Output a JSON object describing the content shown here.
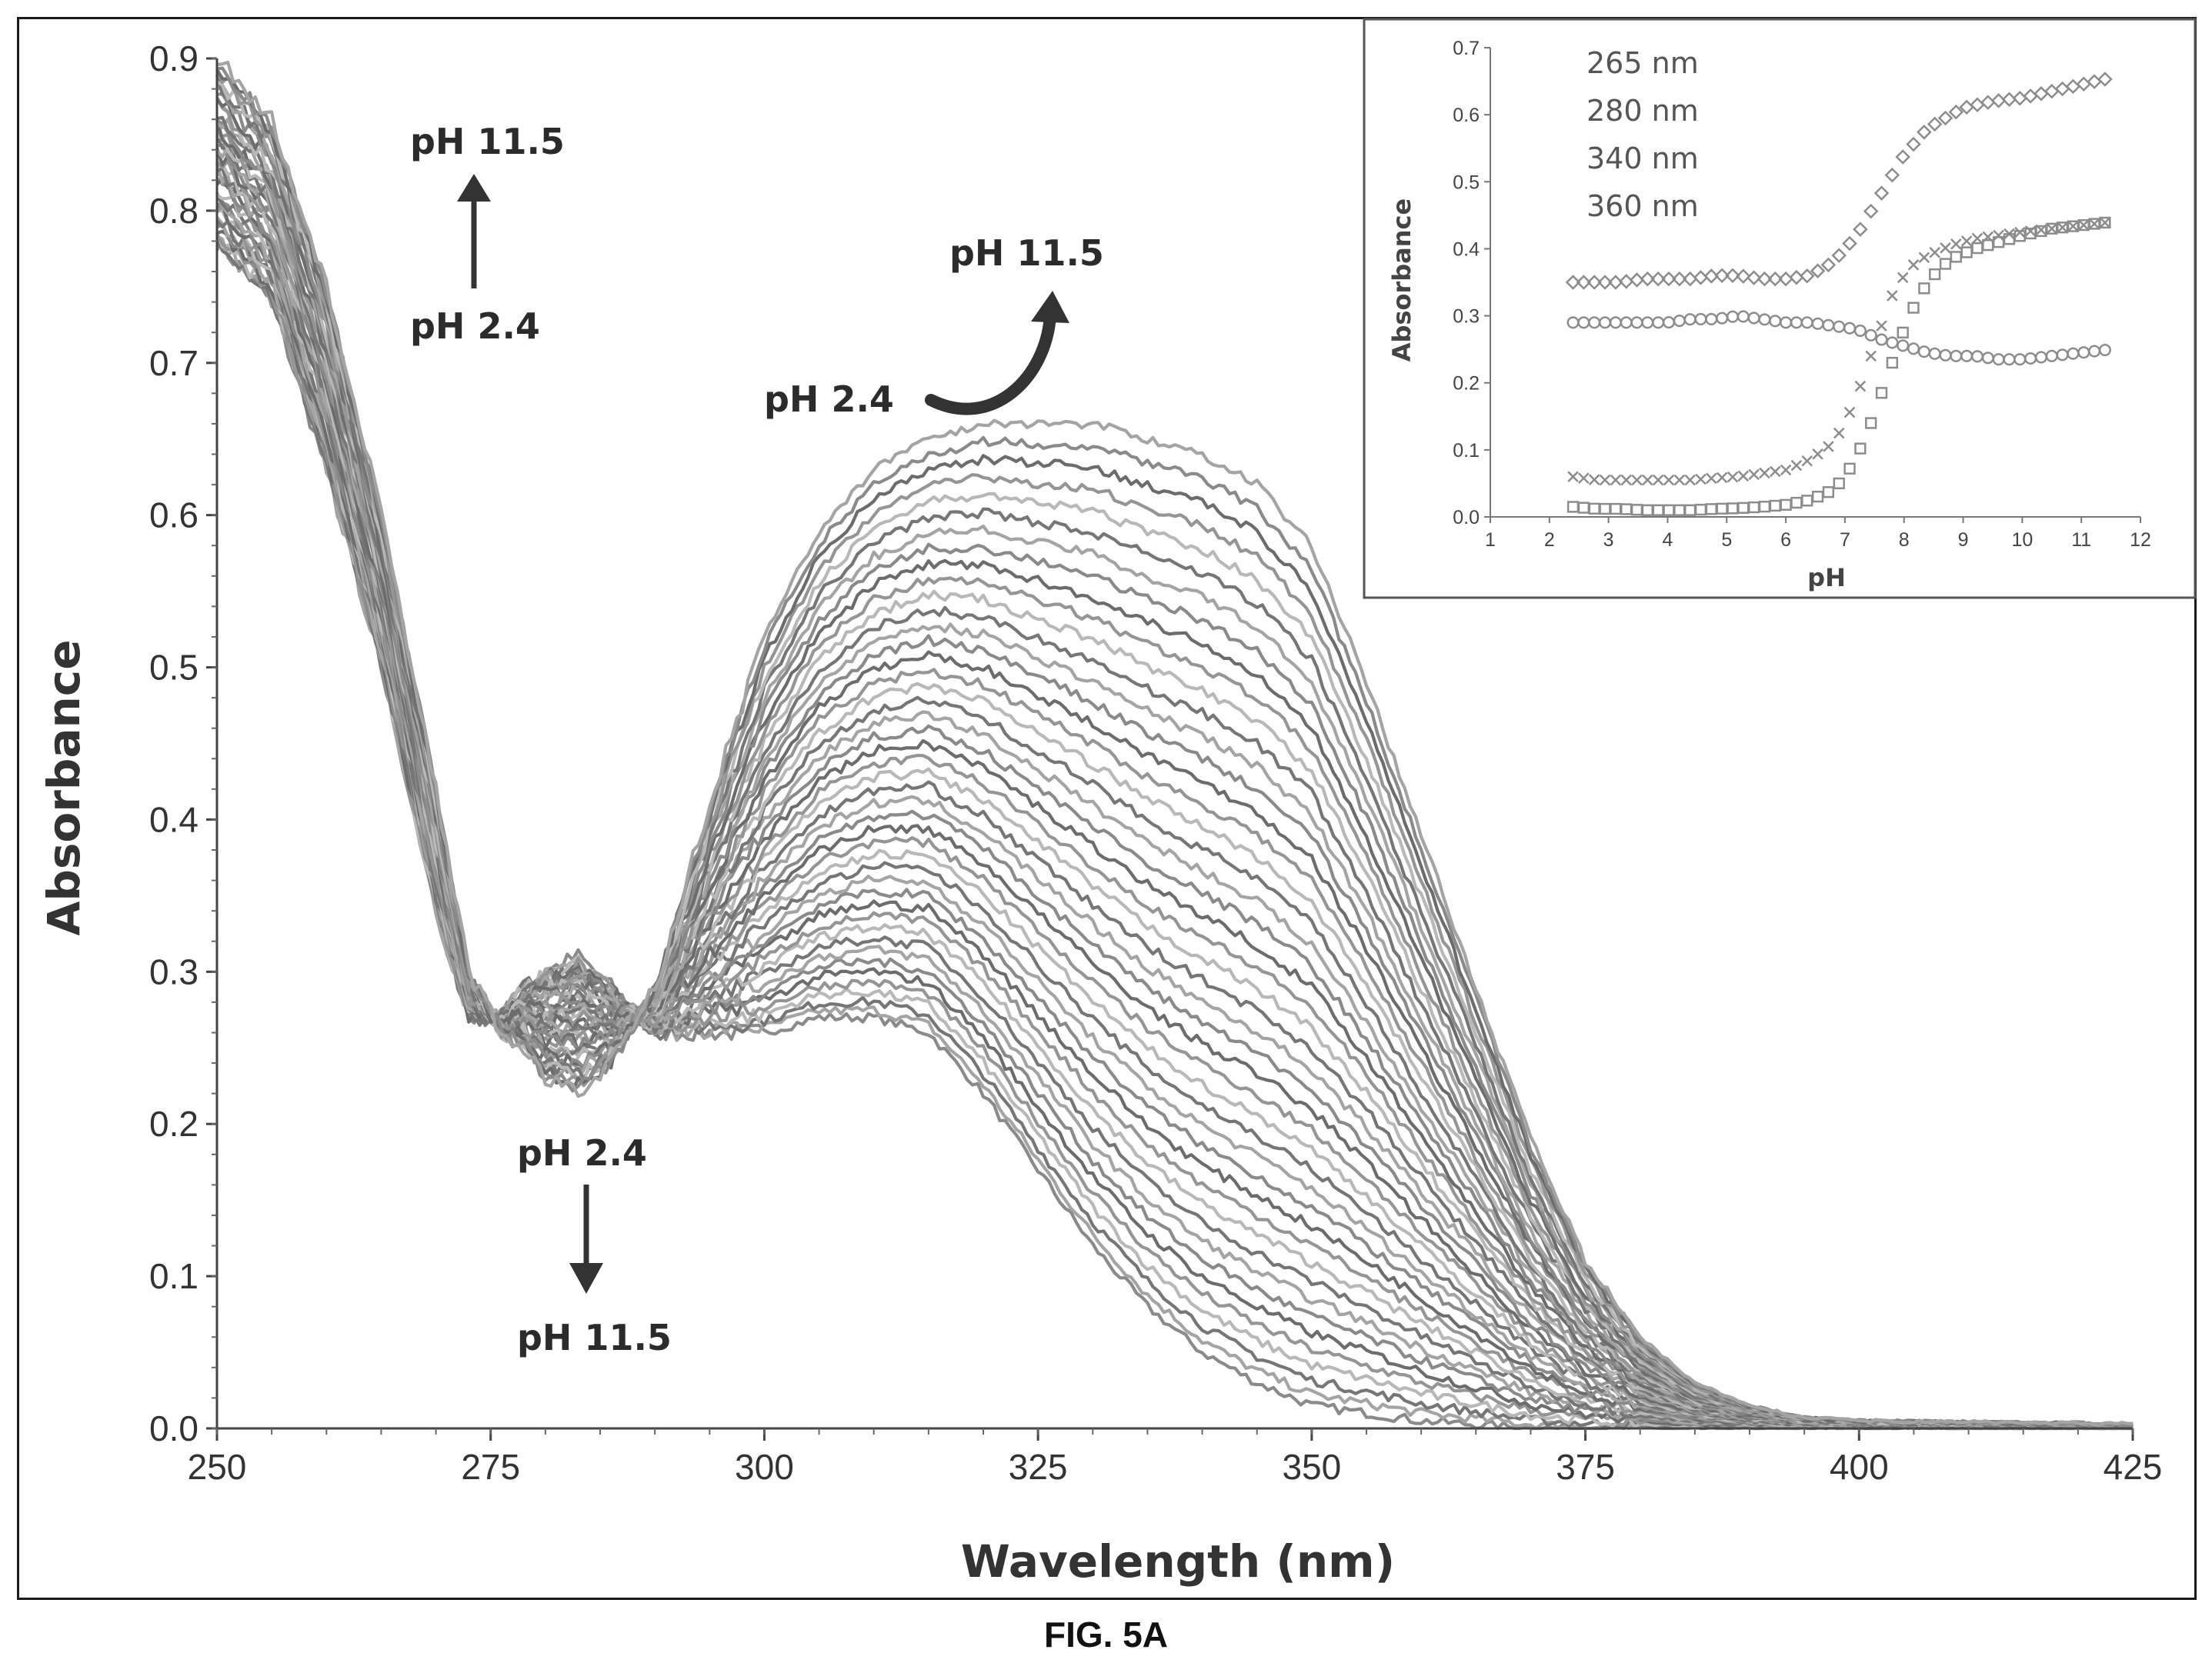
{
  "caption": "FIG. 5A",
  "chart_data": [
    {
      "type": "line",
      "title": "",
      "xlabel": "Wavelength (nm)",
      "ylabel": "Absorbance",
      "xlim": [
        250,
        425
      ],
      "ylim": [
        0.0,
        0.9
      ],
      "xticks": [
        "250",
        "275",
        "300",
        "325",
        "350",
        "375",
        "400",
        "425"
      ],
      "yticks": [
        "0.0",
        "0.1",
        "0.2",
        "0.3",
        "0.4",
        "0.5",
        "0.6",
        "0.7",
        "0.8",
        "0.9"
      ],
      "grid": false,
      "series_count_note": "",
      "lowest_pH_spectrum": {
        "x": [
          250,
          255,
          260,
          265,
          270,
          273,
          276,
          278,
          280,
          283,
          286,
          290,
          295,
          300,
          305,
          310,
          315,
          320,
          325,
          330,
          335,
          340,
          345,
          350,
          360,
          370,
          380,
          390,
          400,
          425
        ],
        "y": [
          0.78,
          0.74,
          0.63,
          0.5,
          0.34,
          0.27,
          0.27,
          0.29,
          0.3,
          0.31,
          0.29,
          0.26,
          0.26,
          0.26,
          0.27,
          0.27,
          0.26,
          0.22,
          0.17,
          0.12,
          0.08,
          0.05,
          0.03,
          0.015,
          0.005,
          0.0,
          0.0,
          0.0,
          0.0,
          0.0
        ]
      },
      "highest_pH_spectrum": {
        "x": [
          250,
          255,
          260,
          265,
          270,
          273,
          276,
          278,
          280,
          283,
          286,
          290,
          295,
          300,
          305,
          310,
          315,
          320,
          325,
          330,
          335,
          340,
          345,
          350,
          355,
          360,
          365,
          370,
          375,
          380,
          385,
          390,
          395,
          400,
          425
        ],
        "y": [
          0.9,
          0.86,
          0.75,
          0.6,
          0.42,
          0.3,
          0.26,
          0.25,
          0.23,
          0.22,
          0.24,
          0.29,
          0.41,
          0.52,
          0.59,
          0.63,
          0.65,
          0.66,
          0.66,
          0.66,
          0.65,
          0.64,
          0.62,
          0.58,
          0.49,
          0.39,
          0.29,
          0.19,
          0.11,
          0.06,
          0.03,
          0.015,
          0.007,
          0.005,
          0.003
        ]
      },
      "annotations": [
        {
          "text_from": "pH 2.4",
          "text_to": "pH 11.5",
          "direction": "up",
          "near_wavelength": 275
        },
        {
          "text_from": "pH 2.4",
          "text_to": "pH 11.5",
          "direction": "curved-up",
          "near_wavelength": 320
        },
        {
          "text_from": "pH 2.4",
          "text_to": "pH 11.5",
          "direction": "down",
          "near_wavelength": 283
        }
      ]
    },
    {
      "type": "scatter",
      "title": "",
      "xlabel": "pH",
      "ylabel": "Absorbance",
      "xlim": [
        1,
        12
      ],
      "ylim": [
        0.0,
        0.7
      ],
      "xticks": [
        "1",
        "2",
        "3",
        "4",
        "5",
        "6",
        "7",
        "8",
        "9",
        "10",
        "11",
        "12"
      ],
      "yticks": [
        "0.0",
        "0.1",
        "0.2",
        "0.3",
        "0.4",
        "0.5",
        "0.6",
        "0.7"
      ],
      "legend_placement": "top-left",
      "series": [
        {
          "name": "265 nm",
          "marker": "diamond",
          "x": [
            2.4,
            2.8,
            3.2,
            3.6,
            4.0,
            4.4,
            4.8,
            5.2,
            5.6,
            6.0,
            6.4,
            6.8,
            7.0,
            7.2,
            7.4,
            7.6,
            7.8,
            8.0,
            8.2,
            8.4,
            8.6,
            8.8,
            9.0,
            9.5,
            10.0,
            10.5,
            11.0,
            11.5
          ],
          "y": [
            0.35,
            0.35,
            0.35,
            0.355,
            0.355,
            0.355,
            0.36,
            0.36,
            0.355,
            0.355,
            0.36,
            0.38,
            0.4,
            0.42,
            0.45,
            0.48,
            0.51,
            0.54,
            0.56,
            0.58,
            0.59,
            0.6,
            0.61,
            0.62,
            0.625,
            0.635,
            0.645,
            0.655
          ]
        },
        {
          "name": "280 nm",
          "marker": "circle",
          "x": [
            2.4,
            2.8,
            3.2,
            3.6,
            4.0,
            4.4,
            4.8,
            5.2,
            5.6,
            6.0,
            6.4,
            6.8,
            7.2,
            7.6,
            8.0,
            8.4,
            8.8,
            9.2,
            9.6,
            10.0,
            10.5,
            11.0,
            11.5
          ],
          "y": [
            0.29,
            0.29,
            0.29,
            0.29,
            0.29,
            0.295,
            0.295,
            0.3,
            0.295,
            0.29,
            0.29,
            0.285,
            0.28,
            0.265,
            0.255,
            0.245,
            0.24,
            0.24,
            0.235,
            0.235,
            0.24,
            0.245,
            0.25
          ]
        },
        {
          "name": "340 nm",
          "marker": "cross",
          "x": [
            2.4,
            2.8,
            3.2,
            3.6,
            4.0,
            4.4,
            4.8,
            5.2,
            5.6,
            6.0,
            6.4,
            6.8,
            7.0,
            7.2,
            7.4,
            7.6,
            7.8,
            8.0,
            8.2,
            8.4,
            8.8,
            9.2,
            9.6,
            10.0,
            10.5,
            11.0,
            11.5
          ],
          "y": [
            0.06,
            0.055,
            0.055,
            0.055,
            0.055,
            0.055,
            0.058,
            0.06,
            0.065,
            0.07,
            0.085,
            0.11,
            0.14,
            0.18,
            0.23,
            0.28,
            0.33,
            0.36,
            0.38,
            0.39,
            0.405,
            0.415,
            0.42,
            0.425,
            0.43,
            0.435,
            0.44
          ]
        },
        {
          "name": "360 nm",
          "marker": "square",
          "x": [
            2.4,
            2.8,
            3.2,
            3.6,
            4.0,
            4.4,
            4.8,
            5.2,
            5.6,
            6.0,
            6.4,
            6.8,
            7.0,
            7.2,
            7.4,
            7.6,
            7.8,
            8.0,
            8.2,
            8.4,
            8.6,
            8.8,
            9.2,
            9.6,
            10.0,
            10.5,
            11.0,
            11.5
          ],
          "y": [
            0.015,
            0.012,
            0.012,
            0.01,
            0.01,
            0.01,
            0.012,
            0.013,
            0.015,
            0.018,
            0.025,
            0.04,
            0.06,
            0.09,
            0.13,
            0.18,
            0.23,
            0.28,
            0.32,
            0.35,
            0.37,
            0.385,
            0.4,
            0.41,
            0.42,
            0.43,
            0.435,
            0.44
          ]
        }
      ]
    }
  ]
}
